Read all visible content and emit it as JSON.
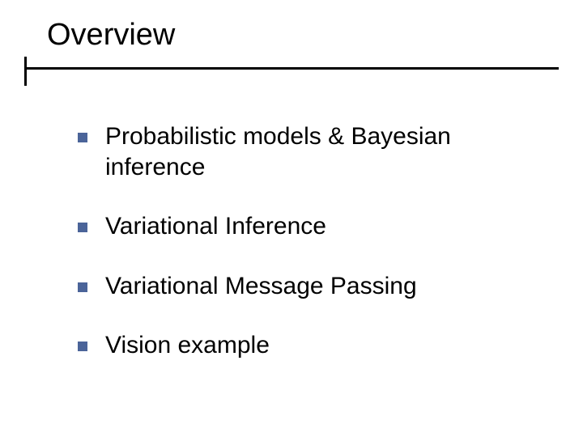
{
  "slide": {
    "title": "Overview",
    "title_fontsize": 38,
    "title_color": "#000000",
    "rule_color": "#000000",
    "background_color": "#ffffff",
    "bullet_color": "#4b6499",
    "bullet_size": 12,
    "item_fontsize": 30,
    "item_color": "#000000",
    "items": [
      {
        "text": "Probabilistic models & Bayesian inference"
      },
      {
        "text": "Variational Inference"
      },
      {
        "text": "Variational Message Passing"
      },
      {
        "text": "Vision example"
      }
    ]
  }
}
